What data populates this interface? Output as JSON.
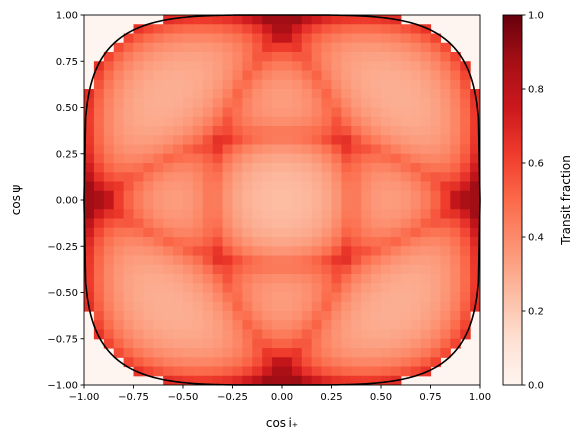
{
  "chart_data": {
    "type": "heatmap",
    "title": "",
    "xlabel": "cos i₊",
    "ylabel": "cos ψ",
    "xlim": [
      -1.0,
      1.0
    ],
    "ylim": [
      -1.0,
      1.0
    ],
    "xticks": [
      "−1.00",
      "−0.75",
      "−0.50",
      "−0.25",
      "0.00",
      "0.25",
      "0.50",
      "0.75",
      "1.00"
    ],
    "xtick_values": [
      -1.0,
      -0.75,
      -0.5,
      -0.25,
      0.0,
      0.25,
      0.5,
      0.75,
      1.0
    ],
    "yticks": [
      "−1.00",
      "−0.75",
      "−0.50",
      "−0.25",
      "0.00",
      "0.25",
      "0.50",
      "0.75",
      "1.00"
    ],
    "ytick_values": [
      -1.0,
      -0.75,
      -0.5,
      -0.25,
      0.0,
      0.25,
      0.5,
      0.75,
      1.0
    ],
    "colorbar": {
      "label": "Transit fraction",
      "colormap": "Reds",
      "range": [
        0.0,
        1.0
      ],
      "ticks": [
        "0.0",
        "0.2",
        "0.4",
        "0.6",
        "0.8",
        "1.0"
      ],
      "tick_values": [
        0.0,
        0.2,
        0.4,
        0.6,
        0.8,
        1.0
      ]
    },
    "boundary_color": "#000000",
    "background_color": "#fff5f0",
    "grid": false
  }
}
